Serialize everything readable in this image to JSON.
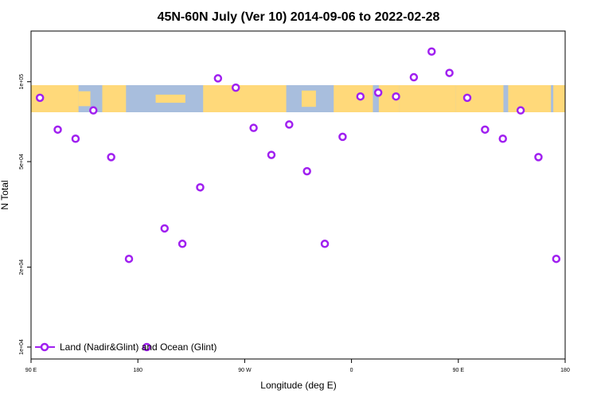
{
  "chart_data": {
    "type": "scatter",
    "title": "45N-60N July (Ver 10)   2014-09-06 to 2022-02-28",
    "xlabel": "Longitude (deg E)",
    "ylabel": "N Total",
    "x_scale": "linear",
    "y_scale": "log",
    "xlim": [
      90,
      540
    ],
    "ylim": [
      10000,
      140000
    ],
    "x_ticks": [
      {
        "value": 90,
        "label": "90 E"
      },
      {
        "value": 180,
        "label": "180"
      },
      {
        "value": 270,
        "label": "90 W"
      },
      {
        "value": 360,
        "label": "0"
      },
      {
        "value": 450,
        "label": "90 E"
      },
      {
        "value": 540,
        "label": "180"
      }
    ],
    "y_ticks": [
      {
        "value": 10000,
        "label": "1e+04"
      },
      {
        "value": 20000,
        "label": "2e+04"
      },
      {
        "value": 50000,
        "label": "5e+04"
      },
      {
        "value": 100000,
        "label": "1e+05"
      }
    ],
    "grid": false,
    "legend_position": "bottom-left",
    "background_band": {
      "type": "world-map-strip",
      "land_color": "#FFD97A",
      "ocean_color": "#A8BEDD"
    },
    "series": [
      {
        "name": "Land (Nadir&Glint) and Ocean (Glint)",
        "color": "#A020F0",
        "marker": "open-circle",
        "x": [
          97.5,
          112.5,
          127.5,
          142.5,
          157.5,
          172.5,
          187.5,
          202.5,
          217.5,
          232.5,
          247.5,
          262.5,
          277.5,
          292.5,
          307.5,
          322.5,
          337.5,
          352.5,
          367.5,
          382.5,
          397.5,
          412.5,
          427.5,
          442.5,
          457.5,
          472.5,
          487.5,
          502.5,
          517.5,
          532.5
        ],
        "y": [
          87000,
          66000,
          61000,
          78000,
          52000,
          21500,
          10000,
          28000,
          24500,
          40000,
          103000,
          95000,
          67000,
          53000,
          69000,
          46000,
          24500,
          62000,
          88000,
          91000,
          88000,
          104000,
          130000,
          108000,
          87000,
          66000,
          61000,
          78000,
          52000,
          21500
        ]
      }
    ]
  }
}
